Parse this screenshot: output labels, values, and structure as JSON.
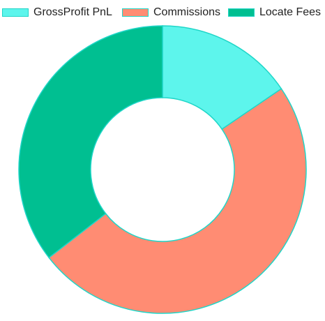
{
  "chart_data": {
    "type": "pie",
    "variant": "doughnut",
    "labels": [
      "GrossProfit PnL",
      "Commissions",
      "Locate Fees"
    ],
    "values": [
      15.5,
      49.0,
      35.5
    ],
    "colors": [
      "#5df5ec",
      "#ff8c73",
      "#00bf91"
    ],
    "border_color": "#1fd6c8",
    "legend_position": "top"
  }
}
